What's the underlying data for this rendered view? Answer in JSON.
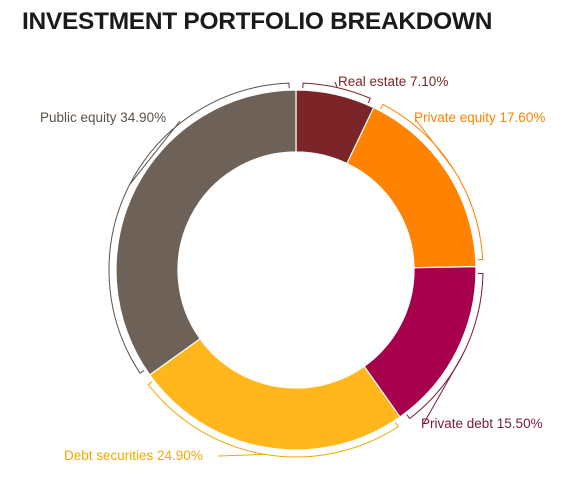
{
  "chart_data": {
    "type": "pie",
    "style": "donut",
    "title": "INVESTMENT PORTFOLIO BREAKDOWN",
    "slices": [
      {
        "name": "Real estate",
        "value": 7.1,
        "label": "Real estate 7.10%",
        "color": "#7b2529",
        "label_color": "#7b2529"
      },
      {
        "name": "Private equity",
        "value": 17.6,
        "label": "Private equity 17.60%",
        "color": "#ff8200",
        "label_color": "#ff8200"
      },
      {
        "name": "Private debt",
        "value": 15.5,
        "label": "Private debt 15.50%",
        "color": "#a6004c",
        "label_color": "#7a1740"
      },
      {
        "name": "Debt securities",
        "value": 24.9,
        "label": "Debt securities 24.90%",
        "color": "#ffb71b",
        "label_color": "#f2a900"
      },
      {
        "name": "Public equity",
        "value": 34.9,
        "label": "Public equity 34.90%",
        "color": "#6e6157",
        "label_color": "#5b5149"
      }
    ],
    "legend": "none",
    "grid": false
  }
}
